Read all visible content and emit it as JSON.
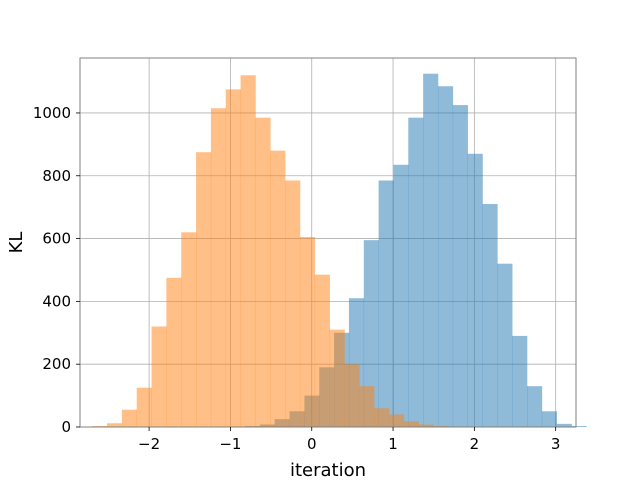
{
  "chart_data": {
    "type": "histogram",
    "xlabel": "iteration",
    "ylabel": "KL",
    "xlim": [
      -2.85,
      3.25
    ],
    "ylim": [
      0,
      1175
    ],
    "xticks": [
      -2,
      -1,
      0,
      1,
      2,
      3
    ],
    "xtick_labels": [
      "−2",
      "−1",
      "0",
      "1",
      "2",
      "3"
    ],
    "yticks": [
      0,
      200,
      400,
      600,
      800,
      1000
    ],
    "ytick_labels": [
      "0",
      "200",
      "400",
      "600",
      "800",
      "1000"
    ],
    "grid": true,
    "bin_width": 0.1825,
    "series": [
      {
        "color": "#1f77b4",
        "opacity": 0.5,
        "bin_start": -0.82,
        "values": [
          3,
          8,
          25,
          50,
          100,
          190,
          300,
          410,
          595,
          785,
          835,
          985,
          1125,
          1085,
          1025,
          870,
          710,
          520,
          290,
          130,
          50,
          10,
          3
        ]
      },
      {
        "color": "#ff7f0e",
        "opacity": 0.5,
        "bin_start": -2.7,
        "values": [
          3,
          12,
          55,
          125,
          320,
          475,
          620,
          875,
          1015,
          1075,
          1120,
          985,
          880,
          785,
          605,
          485,
          310,
          200,
          130,
          60,
          40,
          18,
          8,
          3
        ]
      }
    ]
  }
}
